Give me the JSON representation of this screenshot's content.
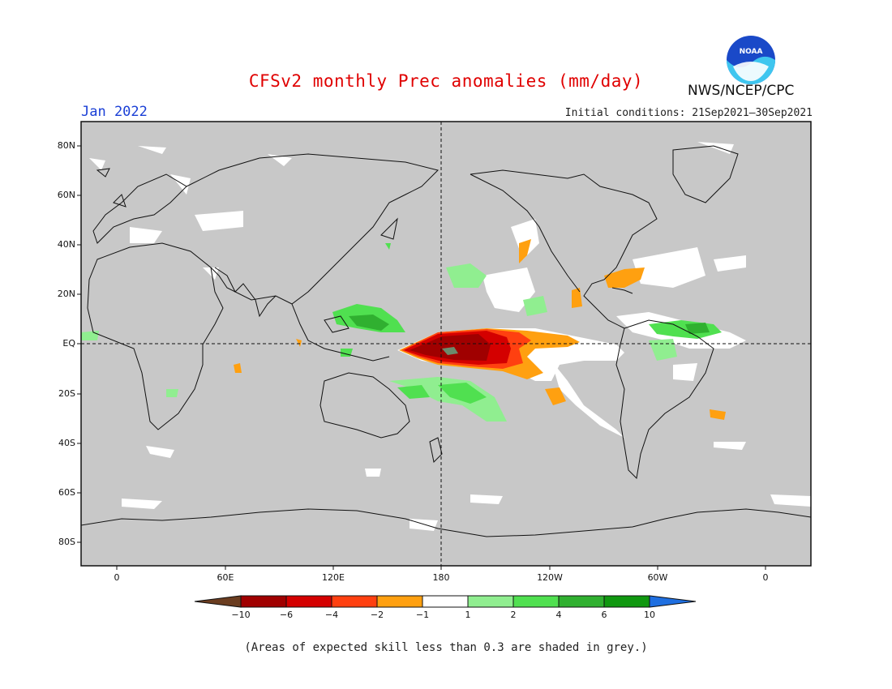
{
  "title": "CFSv2 monthly Prec anomalies (mm/day)",
  "month": "Jan 2022",
  "initial_conditions": "Initial conditions: 21Sep2021–30Sep2021",
  "agency": "NWS/NCEP/CPC",
  "logo_text": "NOAA",
  "footnote": "(Areas of expected skill less than 0.3 are shaded in grey.)",
  "lat_labels": [
    "80N",
    "60N",
    "40N",
    "20N",
    "EQ",
    "20S",
    "40S",
    "60S",
    "80S"
  ],
  "lon_labels": [
    "0",
    "60E",
    "120E",
    "180",
    "120W",
    "60W",
    "0"
  ],
  "colorbar": {
    "labels": [
      "−10",
      "−6",
      "−4",
      "−2",
      "−1",
      "1",
      "2",
      "4",
      "6",
      "10"
    ],
    "colors": [
      "#6b3d20",
      "#a00000",
      "#d40000",
      "#ff4010",
      "#ffa010",
      "#ffffff",
      "#90ee90",
      "#50e050",
      "#30b030",
      "#109810",
      "#1f6fe0"
    ]
  },
  "map_colors": {
    "background": "#c8c8c8",
    "no_skill_white": "#ffffff"
  }
}
